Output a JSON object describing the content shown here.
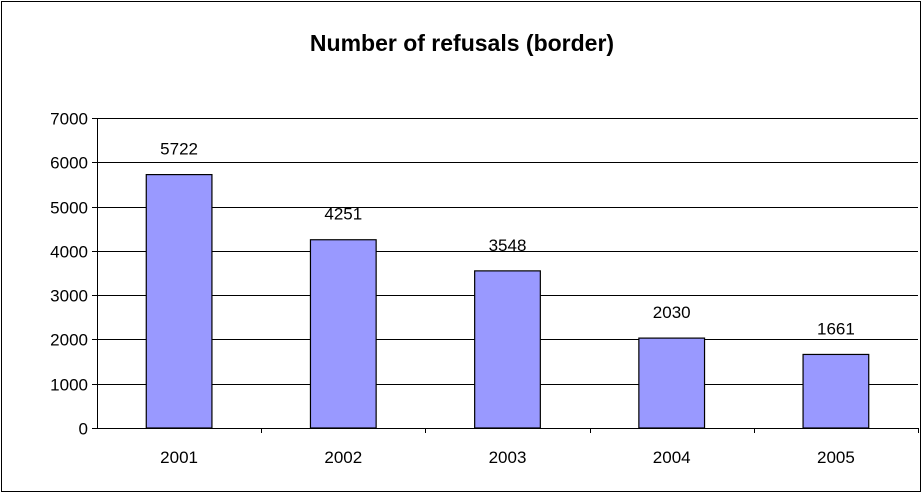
{
  "chart_data": {
    "type": "bar",
    "title": "Number of refusals (border)",
    "categories": [
      "2001",
      "2002",
      "2003",
      "2004",
      "2005"
    ],
    "values": [
      5722,
      4251,
      3548,
      2030,
      1661
    ],
    "data_labels": [
      "5722",
      "4251",
      "3548",
      "2030",
      "1661"
    ],
    "xlabel": "",
    "ylabel": "",
    "ylim": [
      0,
      7000
    ],
    "yticks": [
      "0",
      "1000",
      "2000",
      "3000",
      "4000",
      "5000",
      "6000",
      "7000"
    ],
    "grid": true,
    "legend": "none",
    "bar_color": "#9999ff",
    "bar_stroke": "#000000"
  }
}
